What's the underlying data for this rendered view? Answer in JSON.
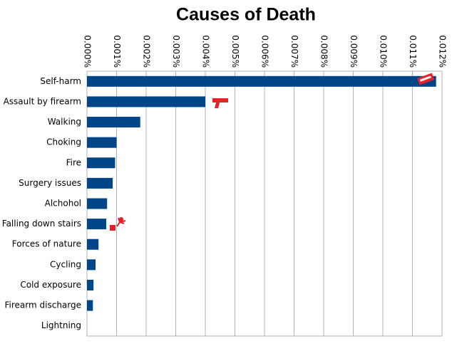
{
  "chart_data": {
    "type": "hbar",
    "title": "Causes of Death",
    "categories": [
      "Self-harm",
      "Assault by firearm",
      "Walking",
      "Choking",
      "Fire",
      "Surgery issues",
      "Alchohol",
      "Falling down stairs",
      "Forces of nature",
      "Cycling",
      "Cold exposure",
      "Firearm discharge",
      "Lightning"
    ],
    "values": [
      0.0118,
      0.004,
      0.0018,
      0.001,
      0.00095,
      0.00087,
      0.00068,
      0.00065,
      0.00039,
      0.00029,
      0.00022,
      0.0002,
      0
    ],
    "color": "#004586",
    "xlim": [
      0,
      0.012
    ],
    "xticks": [
      {
        "value": 0,
        "label": "0.000%"
      },
      {
        "value": 0.001,
        "label": "0.001%"
      },
      {
        "value": 0.002,
        "label": "0.002%"
      },
      {
        "value": 0.003,
        "label": "0.003%"
      },
      {
        "value": 0.004,
        "label": "0.004%"
      },
      {
        "value": 0.005,
        "label": "0.005%"
      },
      {
        "value": 0.006,
        "label": "0.006%"
      },
      {
        "value": 0.007,
        "label": "0.007%"
      },
      {
        "value": 0.008,
        "label": "0.008%"
      },
      {
        "value": 0.009,
        "label": "0.009%"
      },
      {
        "value": 0.01,
        "label": "0.010%"
      },
      {
        "value": 0.011,
        "label": "0.011%"
      },
      {
        "value": 0.012,
        "label": "0.012%"
      }
    ],
    "grid": true
  }
}
